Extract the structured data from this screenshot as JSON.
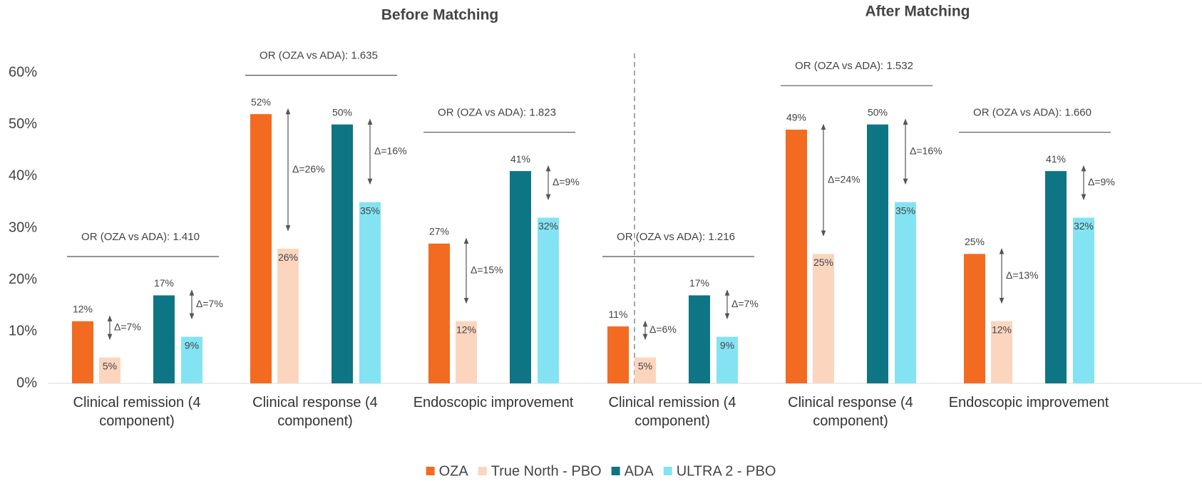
{
  "chart_data": {
    "type": "bar",
    "ylim": [
      0,
      60
    ],
    "yticks": [
      {
        "value": 0,
        "label": "0%"
      },
      {
        "value": 10,
        "label": "10%"
      },
      {
        "value": 20,
        "label": "20%"
      },
      {
        "value": 30,
        "label": "30%"
      },
      {
        "value": 40,
        "label": "40%"
      },
      {
        "value": 50,
        "label": "50%"
      },
      {
        "value": 60,
        "label": "60%"
      }
    ],
    "legend": "bottom",
    "series": [
      {
        "name": "OZA",
        "color": "#f26b21"
      },
      {
        "name": "True North - PBO",
        "color": "#fcd5bf"
      },
      {
        "name": "ADA",
        "color": "#0e7585"
      },
      {
        "name": "ULTRA 2 - PBO",
        "color": "#84e3f3"
      }
    ],
    "panels": [
      {
        "title": "Before Matching",
        "categories": [
          "Clinical remission (4 component)",
          "Clinical response (4 component)",
          "Endoscopic improvement"
        ],
        "values": [
          [
            12,
            52,
            27
          ],
          [
            5,
            26,
            12
          ],
          [
            17,
            50,
            41
          ],
          [
            9,
            35,
            32
          ]
        ],
        "value_labels": [
          [
            "12%",
            "52%",
            "27%"
          ],
          [
            "5%",
            "26%",
            "12%"
          ],
          [
            "17%",
            "50%",
            "41%"
          ],
          [
            "9%",
            "35%",
            "32%"
          ]
        ],
        "odds_ratios": [
          "OR (OZA vs ADA): 1.410",
          "OR (OZA vs ADA): 1.635",
          "OR (OZA vs ADA): 1.823"
        ],
        "deltas": [
          [
            "Δ=7%",
            "Δ=26%",
            "Δ=15%"
          ],
          [
            "Δ=7%",
            "Δ=16%",
            "Δ=9%"
          ]
        ]
      },
      {
        "title": "After Matching",
        "categories": [
          "Clinical remission (4 component)",
          "Clinical response (4 component)",
          "Endoscopic improvement"
        ],
        "values": [
          [
            11,
            49,
            25
          ],
          [
            5,
            25,
            12
          ],
          [
            17,
            50,
            41
          ],
          [
            9,
            35,
            32
          ]
        ],
        "value_labels": [
          [
            "11%",
            "49%",
            "25%"
          ],
          [
            "5%",
            "25%",
            "12%"
          ],
          [
            "17%",
            "50%",
            "41%"
          ],
          [
            "9%",
            "35%",
            "32%"
          ]
        ],
        "odds_ratios": [
          "OR (OZA vs ADA): 1.216",
          "OR (OZA vs ADA): 1.532",
          "OR (OZA vs ADA): 1.660"
        ],
        "deltas": [
          [
            "Δ=6%",
            "Δ=24%",
            "Δ=13%"
          ],
          [
            "Δ=7%",
            "Δ=16%",
            "Δ=9%"
          ]
        ]
      }
    ]
  }
}
